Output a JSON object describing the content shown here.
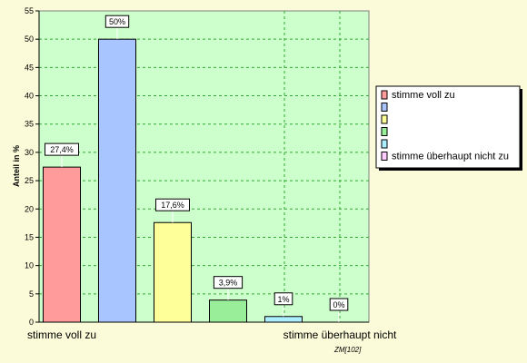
{
  "chart_data": {
    "type": "bar",
    "title": "",
    "xlabel": "",
    "ylabel": "Anteil in %",
    "ylim": [
      0,
      55
    ],
    "yticks": [
      0,
      5,
      10,
      15,
      20,
      25,
      30,
      35,
      40,
      45,
      50,
      55
    ],
    "categories": [
      "stimme voll zu",
      "",
      "",
      "",
      "",
      "stimme überhaupt nicht zu"
    ],
    "axis_category_labels": {
      "first": "stimme voll zu",
      "last": "stimme überhaupt nicht"
    },
    "values": [
      27.4,
      50,
      17.6,
      3.9,
      1,
      0
    ],
    "data_labels": [
      "27,4%",
      "50%",
      "17,6%",
      "3,9%",
      "1%",
      "0%"
    ],
    "colors": [
      "#ff9b9b",
      "#a9c5ff",
      "#ffff99",
      "#99ee99",
      "#aaeeff",
      "#ffccff"
    ],
    "grid": true,
    "legend_placement": "right",
    "plot_background": "#ccffcc",
    "footnote": "ZM[102]"
  }
}
